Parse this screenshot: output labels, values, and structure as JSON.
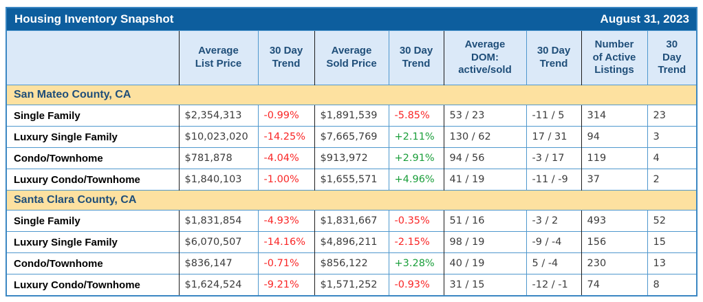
{
  "colors": {
    "title_bar_background": "#0d5e9e",
    "title_bar_text": "#ffffff",
    "column_header_background": "#dbe9f8",
    "header_text": "#1f4e79",
    "section_background": "#fde1a0",
    "grid_blue": "#4e97cd",
    "group_separator_black": "#1a1a1a",
    "trend_negative": "#f92525",
    "trend_positive": "#1a9e3a"
  },
  "columns": [
    {
      "key": "property_type",
      "lines": [
        ""
      ]
    },
    {
      "key": "avg_list_price",
      "lines": [
        "Average",
        "List Price"
      ]
    },
    {
      "key": "list_trend",
      "lines": [
        "30 Day",
        "Trend"
      ]
    },
    {
      "key": "avg_sold_price",
      "lines": [
        "Average",
        "Sold Price"
      ]
    },
    {
      "key": "sold_trend",
      "lines": [
        "30 Day",
        "Trend"
      ]
    },
    {
      "key": "dom",
      "lines": [
        "Average",
        "DOM:",
        "active/sold"
      ]
    },
    {
      "key": "dom_trend",
      "lines": [
        "30 Day",
        "Trend"
      ]
    },
    {
      "key": "active_listings",
      "lines": [
        "Number",
        "of Active",
        "Listings"
      ]
    },
    {
      "key": "listings_trend",
      "lines": [
        "30",
        "Day",
        "Trend"
      ]
    }
  ],
  "chart_data": {
    "type": "table",
    "title": "Housing Inventory Snapshot",
    "as_of_date": "August 31, 2023",
    "column_headers": [
      "",
      "Average List Price",
      "30 Day Trend",
      "Average Sold Price",
      "30 Day Trend",
      "Average DOM: active/sold",
      "30 Day Trend",
      "Number of Active Listings",
      "30 Day Trend"
    ],
    "sections": [
      {
        "name": "San Mateo County, CA",
        "rows": [
          [
            "Single Family",
            "$2,354,313",
            "-0.99%",
            "$1,891,539",
            "-5.85%",
            "53 / 23",
            "-11 / 5",
            "314",
            "23"
          ],
          [
            "Luxury Single Family",
            "$10,023,020",
            "-14.25%",
            "$7,665,769",
            "+2.11%",
            "130 / 62",
            "17 / 31",
            "94",
            "3"
          ],
          [
            "Condo/Townhome",
            "$781,878",
            "-4.04%",
            "$913,972",
            "+2.91%",
            "94 / 56",
            "-3 / 17",
            "119",
            "4"
          ],
          [
            "Luxury Condo/Townhome",
            "$1,840,103",
            "-1.00%",
            "$1,655,571",
            "+4.96%",
            "41 / 19",
            "-11 / -9",
            "37",
            "2"
          ]
        ]
      },
      {
        "name": "Santa Clara County, CA",
        "rows": [
          [
            "Single Family",
            "$1,831,854",
            "-4.93%",
            "$1,831,667",
            "-0.35%",
            "51 / 16",
            "-3 / 2",
            "493",
            "52"
          ],
          [
            "Luxury Single Family",
            "$6,070,507",
            "-14.16%",
            "$4,896,211",
            "-2.15%",
            "98 / 19",
            "-9 / -4",
            "156",
            "15"
          ],
          [
            "Condo/Townhome",
            "$836,147",
            "-0.71%",
            "$856,122",
            "+3.28%",
            "40 / 19",
            "5 / -4",
            "230",
            "13"
          ],
          [
            "Luxury Condo/Townhome",
            "$1,624,524",
            "-9.21%",
            "$1,571,252",
            "-0.93%",
            "31 / 15",
            "-12 / -1",
            "74",
            "8"
          ]
        ]
      }
    ]
  }
}
